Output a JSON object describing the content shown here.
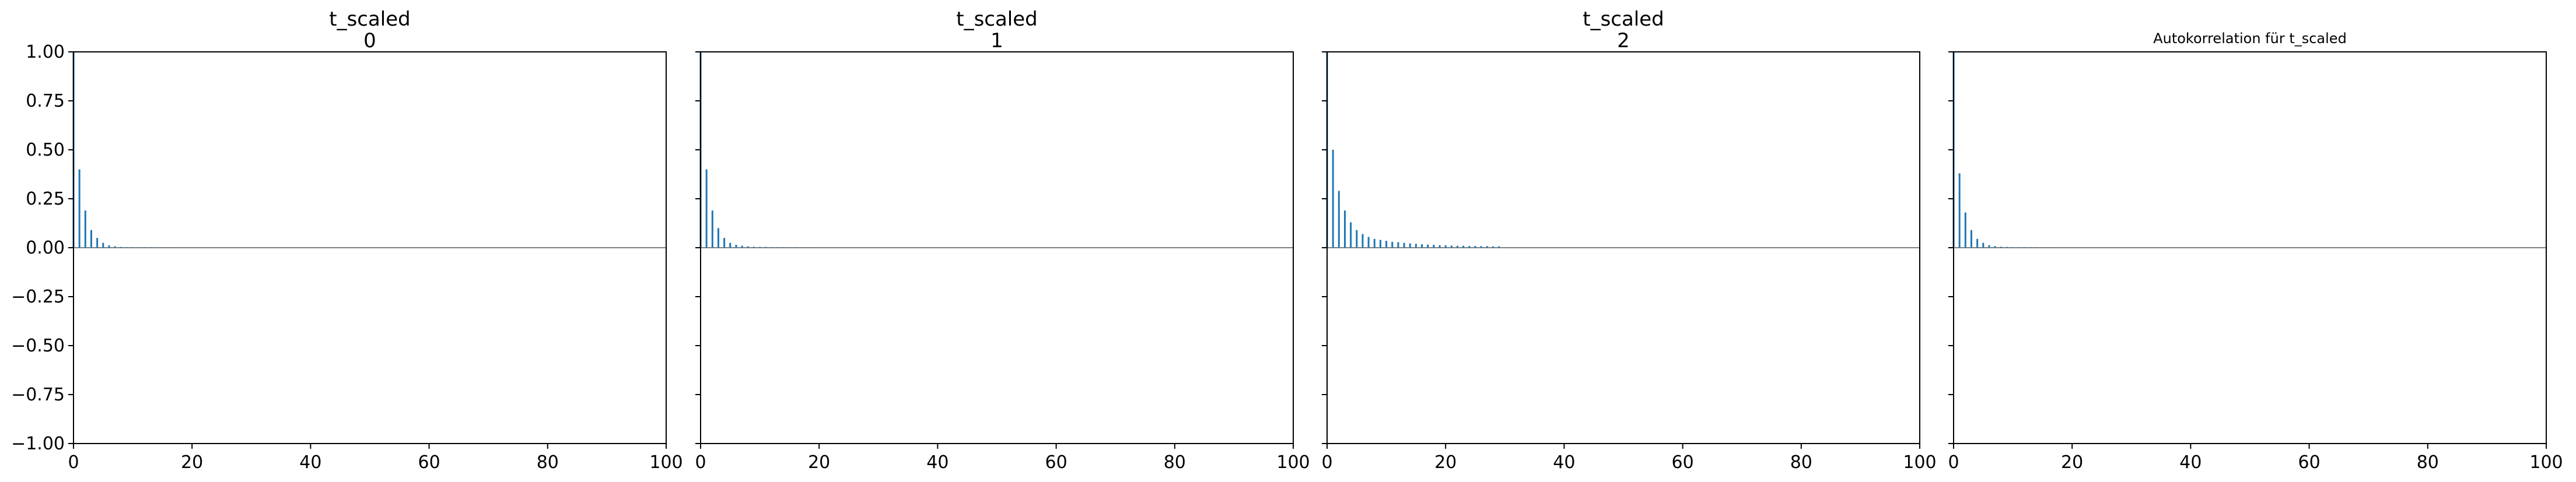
{
  "chart_data": [
    {
      "type": "bar",
      "title": "t_scaled",
      "subtitle": "0",
      "xlim": [
        0,
        100
      ],
      "ylim": [
        -1.0,
        1.0
      ],
      "x_ticks": [
        0,
        20,
        40,
        60,
        80,
        100
      ],
      "y_ticks": [
        1.0,
        0.75,
        0.5,
        0.25,
        0.0,
        -0.25,
        -0.5,
        -0.75,
        -1.0
      ],
      "y_tick_labels": [
        "1.00",
        "0.75",
        "0.50",
        "0.25",
        "0.00",
        "−0.25",
        "−0.50",
        "−0.75",
        "−1.00"
      ],
      "series": [
        {
          "values": [
            1.0,
            0.4,
            0.19,
            0.09,
            0.05,
            0.025,
            0.012,
            0.007,
            0.004,
            0.003,
            0.003,
            0.002,
            0.002,
            0.002,
            0.001,
            0.001,
            0.001,
            0.001,
            0.0,
            0.0
          ]
        }
      ]
    },
    {
      "type": "bar",
      "title": "t_scaled",
      "subtitle": "1",
      "xlim": [
        0,
        100
      ],
      "ylim": [
        -1.0,
        1.0
      ],
      "x_ticks": [
        0,
        20,
        40,
        60,
        80,
        100
      ],
      "series": [
        {
          "values": [
            1.0,
            0.4,
            0.19,
            0.1,
            0.05,
            0.025,
            0.015,
            0.01,
            0.007,
            0.005,
            0.004,
            0.004,
            0.003,
            0.003,
            0.002,
            0.002,
            0.002,
            0.001,
            0.001,
            0.001
          ]
        }
      ]
    },
    {
      "type": "bar",
      "title": "t_scaled",
      "subtitle": "2",
      "xlim": [
        0,
        100
      ],
      "ylim": [
        -1.0,
        1.0
      ],
      "x_ticks": [
        0,
        20,
        40,
        60,
        80,
        100
      ],
      "series": [
        {
          "values": [
            1.0,
            0.5,
            0.29,
            0.19,
            0.13,
            0.09,
            0.07,
            0.055,
            0.045,
            0.04,
            0.035,
            0.03,
            0.028,
            0.025,
            0.022,
            0.02,
            0.018,
            0.016,
            0.015,
            0.013,
            0.012,
            0.011,
            0.01,
            0.01,
            0.009,
            0.009,
            0.008,
            0.008,
            0.007,
            0.007
          ]
        }
      ]
    },
    {
      "type": "bar",
      "title": "Autokorrelation für t_scaled",
      "xlim": [
        0,
        100
      ],
      "ylim": [
        -1.0,
        1.0
      ],
      "x_ticks": [
        0,
        20,
        40,
        60,
        80,
        100
      ],
      "series": [
        {
          "values": [
            1.0,
            0.38,
            0.18,
            0.09,
            0.045,
            0.025,
            0.013,
            0.008,
            0.005,
            0.004,
            0.003,
            0.003,
            0.002,
            0.002,
            0.002,
            0.001,
            0.001,
            0.001,
            0.0,
            0.0
          ]
        }
      ]
    }
  ],
  "colors": {
    "bar": "#1f77b4",
    "zero_line": "#808080",
    "axes": "#000000"
  }
}
